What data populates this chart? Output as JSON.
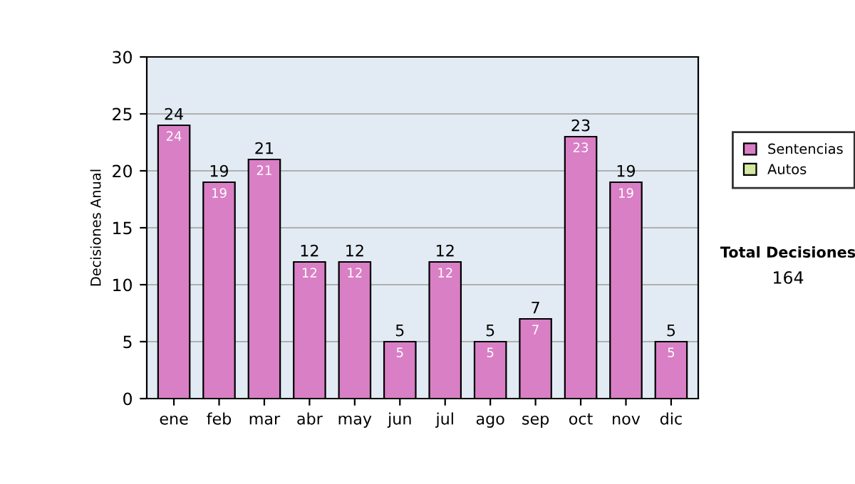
{
  "chart_data": {
    "type": "bar",
    "ylabel": "Decisiones Anual",
    "categories": [
      "ene",
      "feb",
      "mar",
      "abr",
      "may",
      "jun",
      "jul",
      "ago",
      "sep",
      "oct",
      "nov",
      "dic"
    ],
    "series": [
      {
        "name": "Sentencias",
        "color": "#d97fc5",
        "values": [
          24,
          19,
          21,
          12,
          12,
          5,
          12,
          5,
          7,
          23,
          19,
          5
        ]
      },
      {
        "name": "Autos",
        "color": "#d5e8a0",
        "values": [
          null,
          null,
          null,
          null,
          null,
          null,
          null,
          null,
          null,
          null,
          null,
          null
        ]
      }
    ],
    "data_labels": true,
    "totals": [
      "24",
      "19",
      "21",
      "12",
      "12",
      "5",
      "12",
      "5",
      "7",
      "23",
      "19",
      "5"
    ],
    "ylim": [
      0,
      30
    ],
    "yticks": [
      0,
      5,
      10,
      15,
      20,
      25,
      30
    ],
    "grid": "y",
    "legend": "right",
    "annotations": [
      "Total Decisiones",
      "164"
    ]
  }
}
